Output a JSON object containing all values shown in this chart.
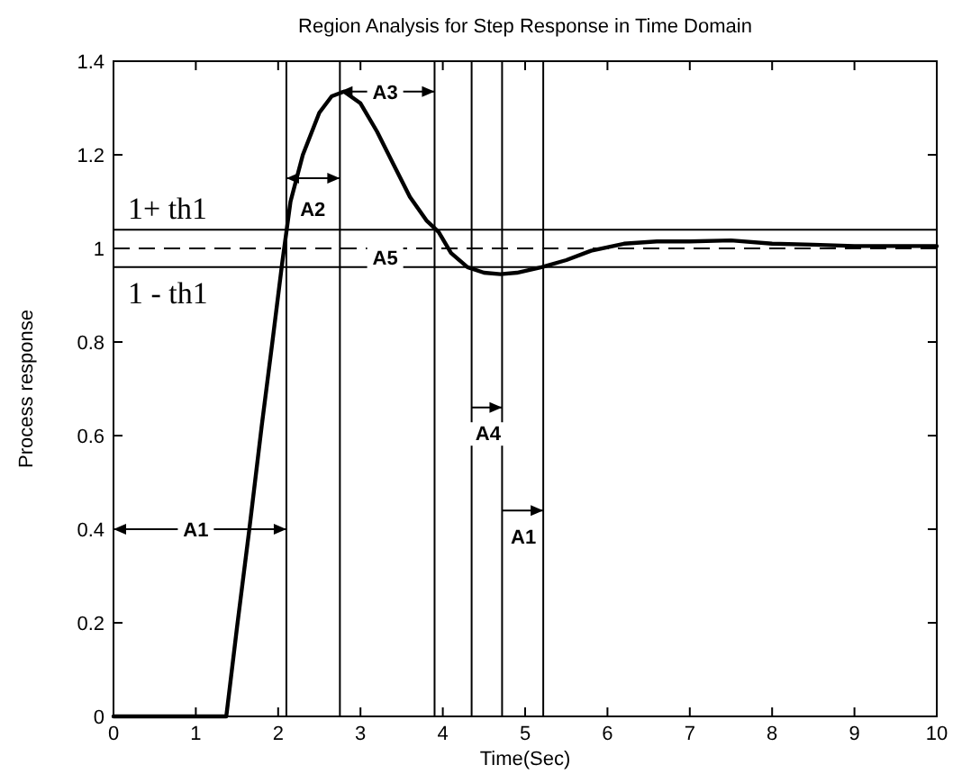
{
  "chart_data": {
    "type": "line",
    "title": "Region Analysis for Step Response in Time Domain",
    "xlabel": "Time(Sec)",
    "ylabel": "Process response",
    "xlim": [
      0,
      10
    ],
    "ylim": [
      0,
      1.4
    ],
    "xticks": [
      0,
      1,
      2,
      3,
      4,
      5,
      6,
      7,
      8,
      9,
      10
    ],
    "yticks": [
      0,
      0.2,
      0.4,
      0.6,
      0.8,
      1,
      1.2,
      1.4
    ],
    "grid": false,
    "marker": "none",
    "line_style": "solid",
    "series": [
      {
        "color": "#000000",
        "x": [
          0,
          1.37,
          1.5,
          1.65,
          1.8,
          1.93,
          2.05,
          2.15,
          2.3,
          2.5,
          2.65,
          2.8,
          3.0,
          3.2,
          3.4,
          3.6,
          3.8,
          3.95,
          4.1,
          4.3,
          4.5,
          4.7,
          4.9,
          5.2,
          5.5,
          5.8,
          6.2,
          6.6,
          7.0,
          7.5,
          8.0,
          8.5,
          9.0,
          10
        ],
        "values": [
          0,
          0,
          0.19,
          0.4,
          0.62,
          0.8,
          0.97,
          1.1,
          1.2,
          1.29,
          1.325,
          1.335,
          1.31,
          1.25,
          1.18,
          1.11,
          1.06,
          1.035,
          0.99,
          0.96,
          0.948,
          0.945,
          0.948,
          0.96,
          0.975,
          0.995,
          1.01,
          1.015,
          1.015,
          1.017,
          1.01,
          1.008,
          1.005,
          1.005
        ]
      }
    ],
    "ref_lines": [
      {
        "axis": "y",
        "value": 1.04,
        "label": "1+ th1",
        "color": "#000000",
        "line_style": "solid"
      },
      {
        "axis": "y",
        "value": 0.96,
        "label": "1 - th1",
        "color": "#000000",
        "line_style": "solid"
      },
      {
        "axis": "y",
        "value": 1,
        "label": null,
        "color": "#000000",
        "line_style": "dashed"
      },
      {
        "axis": "x",
        "value": 2.1,
        "label": null,
        "color": "#000000",
        "line_style": "solid"
      },
      {
        "axis": "x",
        "value": 2.75,
        "label": null,
        "color": "#000000",
        "line_style": "solid"
      },
      {
        "axis": "x",
        "value": 3.9,
        "label": null,
        "color": "#000000",
        "line_style": "solid"
      },
      {
        "axis": "x",
        "value": 4.35,
        "label": null,
        "color": "#000000",
        "line_style": "solid"
      },
      {
        "axis": "x",
        "value": 4.72,
        "label": null,
        "color": "#000000",
        "line_style": "solid"
      },
      {
        "axis": "x",
        "value": 5.22,
        "label": null,
        "color": "#000000",
        "line_style": "solid"
      }
    ],
    "annotations": [
      "A1",
      "A2",
      "A3",
      "A4",
      "A1",
      "A5"
    ]
  }
}
